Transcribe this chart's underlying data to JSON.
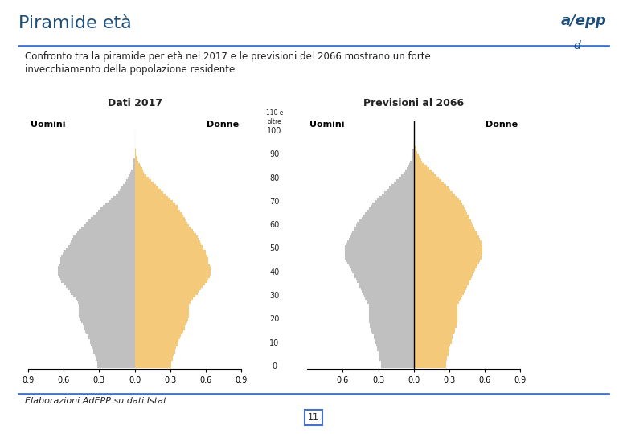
{
  "title": "Piramide età",
  "subtitle_line1": "Confronto tra la piramide per età nel 2017 e le previsioni del 2066 mostrano un forte",
  "subtitle_line2": "invecchiamento della popolazione residente",
  "label_2017": "Dati 2017",
  "label_2066": "Previsioni al 2066",
  "label_uomini": "Uomini",
  "label_donne": "Donne",
  "footer": "Elaborazioni AdEPP su dati Istat",
  "page_number": "11",
  "color_uomini": "#C0C0C0",
  "color_donne": "#F5C97A",
  "background": "#FFFFFF",
  "title_color": "#1F4E79",
  "header_line_color": "#4472C4",
  "ages": [
    0,
    1,
    2,
    3,
    4,
    5,
    6,
    7,
    8,
    9,
    10,
    11,
    12,
    13,
    14,
    15,
    16,
    17,
    18,
    19,
    20,
    21,
    22,
    23,
    24,
    25,
    26,
    27,
    28,
    29,
    30,
    31,
    32,
    33,
    34,
    35,
    36,
    37,
    38,
    39,
    40,
    41,
    42,
    43,
    44,
    45,
    46,
    47,
    48,
    49,
    50,
    51,
    52,
    53,
    54,
    55,
    56,
    57,
    58,
    59,
    60,
    61,
    62,
    63,
    64,
    65,
    66,
    67,
    68,
    69,
    70,
    71,
    72,
    73,
    74,
    75,
    76,
    77,
    78,
    79,
    80,
    81,
    82,
    83,
    84,
    85,
    86,
    87,
    88,
    89,
    90,
    91,
    92,
    93,
    94,
    95,
    96,
    97,
    98,
    99,
    100
  ],
  "data_2017_m": [
    0.32,
    0.32,
    0.32,
    0.33,
    0.33,
    0.34,
    0.35,
    0.35,
    0.36,
    0.37,
    0.38,
    0.38,
    0.39,
    0.4,
    0.41,
    0.42,
    0.43,
    0.43,
    0.44,
    0.45,
    0.46,
    0.47,
    0.47,
    0.47,
    0.47,
    0.47,
    0.47,
    0.48,
    0.49,
    0.5,
    0.52,
    0.54,
    0.55,
    0.57,
    0.58,
    0.6,
    0.62,
    0.63,
    0.64,
    0.65,
    0.65,
    0.65,
    0.65,
    0.64,
    0.63,
    0.63,
    0.63,
    0.62,
    0.61,
    0.6,
    0.58,
    0.56,
    0.55,
    0.54,
    0.53,
    0.52,
    0.5,
    0.49,
    0.47,
    0.45,
    0.43,
    0.41,
    0.39,
    0.37,
    0.35,
    0.33,
    0.31,
    0.29,
    0.27,
    0.25,
    0.22,
    0.2,
    0.18,
    0.16,
    0.14,
    0.13,
    0.11,
    0.1,
    0.08,
    0.07,
    0.06,
    0.05,
    0.04,
    0.03,
    0.02,
    0.02,
    0.01,
    0.01,
    0.01,
    0.0,
    0.0,
    0.0,
    0.0,
    0.0,
    0.0,
    0.0,
    0.0,
    0.0,
    0.0,
    0.0,
    0.0
  ],
  "data_2017_f": [
    0.31,
    0.31,
    0.31,
    0.32,
    0.32,
    0.33,
    0.34,
    0.34,
    0.35,
    0.36,
    0.37,
    0.37,
    0.38,
    0.39,
    0.4,
    0.41,
    0.42,
    0.42,
    0.43,
    0.44,
    0.45,
    0.46,
    0.46,
    0.46,
    0.46,
    0.46,
    0.46,
    0.47,
    0.48,
    0.49,
    0.51,
    0.53,
    0.54,
    0.56,
    0.57,
    0.59,
    0.61,
    0.62,
    0.63,
    0.64,
    0.64,
    0.64,
    0.64,
    0.63,
    0.62,
    0.62,
    0.62,
    0.61,
    0.6,
    0.6,
    0.58,
    0.57,
    0.56,
    0.55,
    0.54,
    0.53,
    0.52,
    0.5,
    0.49,
    0.47,
    0.46,
    0.44,
    0.43,
    0.42,
    0.41,
    0.4,
    0.38,
    0.37,
    0.36,
    0.34,
    0.32,
    0.3,
    0.28,
    0.26,
    0.24,
    0.22,
    0.2,
    0.18,
    0.16,
    0.14,
    0.12,
    0.1,
    0.08,
    0.07,
    0.06,
    0.05,
    0.04,
    0.03,
    0.02,
    0.02,
    0.01,
    0.01,
    0.01,
    0.0,
    0.0,
    0.0,
    0.0,
    0.0,
    0.0,
    0.0,
    0.0
  ],
  "data_2066_m": [
    0.28,
    0.28,
    0.28,
    0.29,
    0.29,
    0.3,
    0.3,
    0.31,
    0.31,
    0.32,
    0.33,
    0.33,
    0.34,
    0.34,
    0.35,
    0.36,
    0.36,
    0.37,
    0.37,
    0.38,
    0.38,
    0.38,
    0.38,
    0.38,
    0.38,
    0.38,
    0.38,
    0.39,
    0.4,
    0.41,
    0.42,
    0.43,
    0.44,
    0.45,
    0.46,
    0.47,
    0.48,
    0.49,
    0.5,
    0.51,
    0.52,
    0.53,
    0.54,
    0.55,
    0.56,
    0.57,
    0.58,
    0.58,
    0.58,
    0.58,
    0.58,
    0.58,
    0.57,
    0.56,
    0.55,
    0.54,
    0.53,
    0.52,
    0.51,
    0.5,
    0.49,
    0.48,
    0.46,
    0.44,
    0.43,
    0.41,
    0.4,
    0.38,
    0.36,
    0.35,
    0.33,
    0.31,
    0.29,
    0.27,
    0.25,
    0.23,
    0.21,
    0.19,
    0.17,
    0.15,
    0.13,
    0.11,
    0.09,
    0.07,
    0.06,
    0.05,
    0.04,
    0.03,
    0.02,
    0.02,
    0.01,
    0.01,
    0.01,
    0.0,
    0.0,
    0.0,
    0.0,
    0.0,
    0.0,
    0.0,
    0.0
  ],
  "data_2066_f": [
    0.27,
    0.27,
    0.27,
    0.28,
    0.28,
    0.29,
    0.29,
    0.3,
    0.3,
    0.31,
    0.32,
    0.32,
    0.33,
    0.33,
    0.34,
    0.35,
    0.35,
    0.36,
    0.36,
    0.37,
    0.37,
    0.37,
    0.37,
    0.37,
    0.37,
    0.37,
    0.37,
    0.38,
    0.39,
    0.4,
    0.41,
    0.42,
    0.43,
    0.44,
    0.45,
    0.46,
    0.47,
    0.48,
    0.49,
    0.5,
    0.51,
    0.52,
    0.53,
    0.54,
    0.55,
    0.56,
    0.57,
    0.57,
    0.58,
    0.58,
    0.58,
    0.58,
    0.57,
    0.57,
    0.56,
    0.55,
    0.54,
    0.53,
    0.52,
    0.51,
    0.5,
    0.49,
    0.48,
    0.47,
    0.46,
    0.45,
    0.44,
    0.43,
    0.42,
    0.41,
    0.4,
    0.38,
    0.36,
    0.35,
    0.33,
    0.31,
    0.29,
    0.27,
    0.25,
    0.23,
    0.21,
    0.19,
    0.17,
    0.15,
    0.13,
    0.11,
    0.09,
    0.07,
    0.06,
    0.05,
    0.04,
    0.03,
    0.02,
    0.02,
    0.01,
    0.01,
    0.01,
    0.0,
    0.0,
    0.0,
    0.0
  ]
}
